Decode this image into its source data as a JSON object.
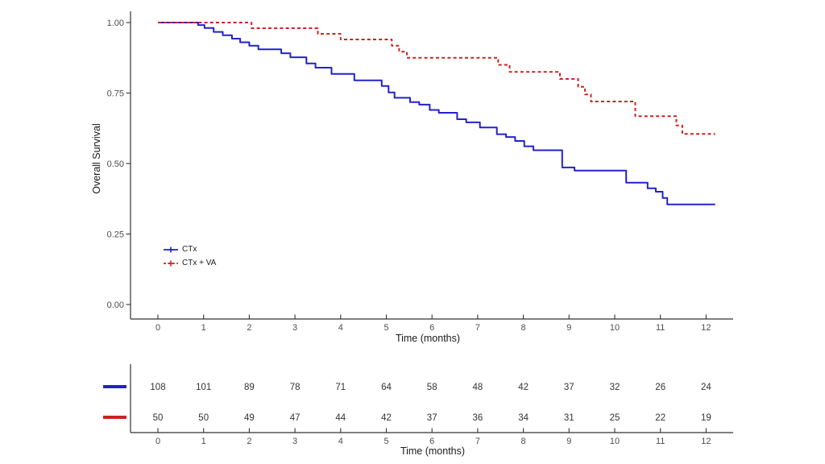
{
  "figure": {
    "background": "#ffffff",
    "axis_color": "#333333",
    "tick_text_color": "#4d4d4d",
    "label_text_color": "#1a1a1a"
  },
  "chart_data": {
    "type": "line",
    "subtype": "kaplan_meier_step",
    "title": "",
    "xlabel": "Time (months)",
    "ylabel": "Overall Survival",
    "xlim": [
      0,
      12.4
    ],
    "ylim": [
      0.0,
      1.0
    ],
    "xticks": [
      "0",
      "1",
      "2",
      "3",
      "4",
      "5",
      "6",
      "7",
      "8",
      "9",
      "10",
      "11",
      "12"
    ],
    "xtick_values": [
      0,
      1,
      2,
      3,
      4,
      5,
      6,
      7,
      8,
      9,
      10,
      11,
      12
    ],
    "ytick_labels": [
      "0.00",
      "0.25",
      "0.50",
      "0.75",
      "1.00"
    ],
    "ytick_values": [
      0.0,
      0.25,
      0.5,
      0.75,
      1.0
    ],
    "grid": "off",
    "censor_marker": "+",
    "legend": {
      "position": "inside-lower-left",
      "entries": [
        {
          "label": "CTx",
          "color": "#2222CC",
          "dash": false
        },
        {
          "label": "CTx + VA",
          "color": "#CC2222",
          "dash": true
        }
      ]
    },
    "series": [
      {
        "name": "CTx",
        "color": "#2222CC",
        "dash": false,
        "end_time": 12.2,
        "steps": [
          [
            0,
            1.0
          ],
          [
            0.88,
            0.991
          ],
          [
            1.02,
            0.981
          ],
          [
            1.22,
            0.967
          ],
          [
            1.42,
            0.955
          ],
          [
            1.62,
            0.943
          ],
          [
            1.8,
            0.93
          ],
          [
            2.0,
            0.918
          ],
          [
            2.2,
            0.905
          ],
          [
            2.7,
            0.891
          ],
          [
            2.9,
            0.877
          ],
          [
            3.25,
            0.855
          ],
          [
            3.45,
            0.84
          ],
          [
            3.8,
            0.818
          ],
          [
            4.3,
            0.795
          ],
          [
            4.9,
            0.775
          ],
          [
            5.05,
            0.752
          ],
          [
            5.18,
            0.733
          ],
          [
            5.52,
            0.718
          ],
          [
            5.72,
            0.709
          ],
          [
            5.95,
            0.69
          ],
          [
            6.15,
            0.68
          ],
          [
            6.55,
            0.657
          ],
          [
            6.75,
            0.646
          ],
          [
            7.05,
            0.628
          ],
          [
            7.42,
            0.604
          ],
          [
            7.62,
            0.594
          ],
          [
            7.82,
            0.58
          ],
          [
            8.02,
            0.561
          ],
          [
            8.22,
            0.547
          ],
          [
            8.85,
            0.486
          ],
          [
            9.12,
            0.475
          ],
          [
            10.25,
            0.432
          ],
          [
            10.72,
            0.412
          ],
          [
            10.9,
            0.4
          ],
          [
            11.05,
            0.378
          ],
          [
            11.15,
            0.355
          ]
        ],
        "censors": [
          [
            0.18,
            1.0
          ],
          [
            0.25,
            1.0
          ],
          [
            0.4,
            1.0
          ],
          [
            0.47,
            1.0
          ],
          [
            0.8,
            1.0
          ],
          [
            2.45,
            0.905
          ],
          [
            2.55,
            0.905
          ],
          [
            3.9,
            0.818
          ],
          [
            4.0,
            0.818
          ],
          [
            4.6,
            0.795
          ],
          [
            5.6,
            0.718
          ],
          [
            6.38,
            0.68
          ],
          [
            6.45,
            0.68
          ],
          [
            6.9,
            0.646
          ],
          [
            9.05,
            0.486
          ],
          [
            9.3,
            0.475
          ],
          [
            9.95,
            0.475
          ],
          [
            12.18,
            0.355
          ]
        ]
      },
      {
        "name": "CTx + VA",
        "color": "#CC2222",
        "dash": true,
        "end_time": 12.2,
        "steps": [
          [
            0,
            1.0
          ],
          [
            2.05,
            0.98
          ],
          [
            3.5,
            0.96
          ],
          [
            4.0,
            0.94
          ],
          [
            5.12,
            0.918
          ],
          [
            5.28,
            0.897
          ],
          [
            5.45,
            0.875
          ],
          [
            7.45,
            0.85
          ],
          [
            7.7,
            0.825
          ],
          [
            8.8,
            0.8
          ],
          [
            9.2,
            0.772
          ],
          [
            9.35,
            0.745
          ],
          [
            9.48,
            0.72
          ],
          [
            10.45,
            0.668
          ],
          [
            11.35,
            0.635
          ],
          [
            11.48,
            0.605
          ]
        ],
        "censors": [
          [
            1.1,
            1.0
          ],
          [
            1.62,
            1.0
          ],
          [
            2.28,
            0.98
          ],
          [
            3.37,
            0.98
          ],
          [
            4.25,
            0.94
          ],
          [
            5.58,
            0.875
          ],
          [
            5.76,
            0.875
          ],
          [
            5.92,
            0.875
          ],
          [
            6.48,
            0.875
          ],
          [
            6.6,
            0.875
          ],
          [
            8.35,
            0.825
          ],
          [
            9.7,
            0.72
          ],
          [
            9.88,
            0.72
          ],
          [
            10.1,
            0.72
          ],
          [
            10.85,
            0.668
          ],
          [
            12.18,
            0.605
          ]
        ]
      }
    ],
    "risk_table": {
      "xlabel": "Time (months)",
      "xticks": [
        "0",
        "1",
        "2",
        "3",
        "4",
        "5",
        "6",
        "7",
        "8",
        "9",
        "10",
        "11",
        "12"
      ],
      "xtick_values": [
        0,
        1,
        2,
        3,
        4,
        5,
        6,
        7,
        8,
        9,
        10,
        11,
        12
      ],
      "rows": [
        {
          "name": "CTx",
          "color": "#2222CC",
          "counts": [
            108,
            101,
            89,
            78,
            71,
            64,
            58,
            48,
            42,
            37,
            32,
            26,
            24
          ]
        },
        {
          "name": "CTx + VA",
          "color": "#CC2222",
          "counts": [
            50,
            50,
            49,
            47,
            44,
            42,
            37,
            36,
            34,
            31,
            25,
            22,
            19
          ]
        }
      ]
    }
  }
}
